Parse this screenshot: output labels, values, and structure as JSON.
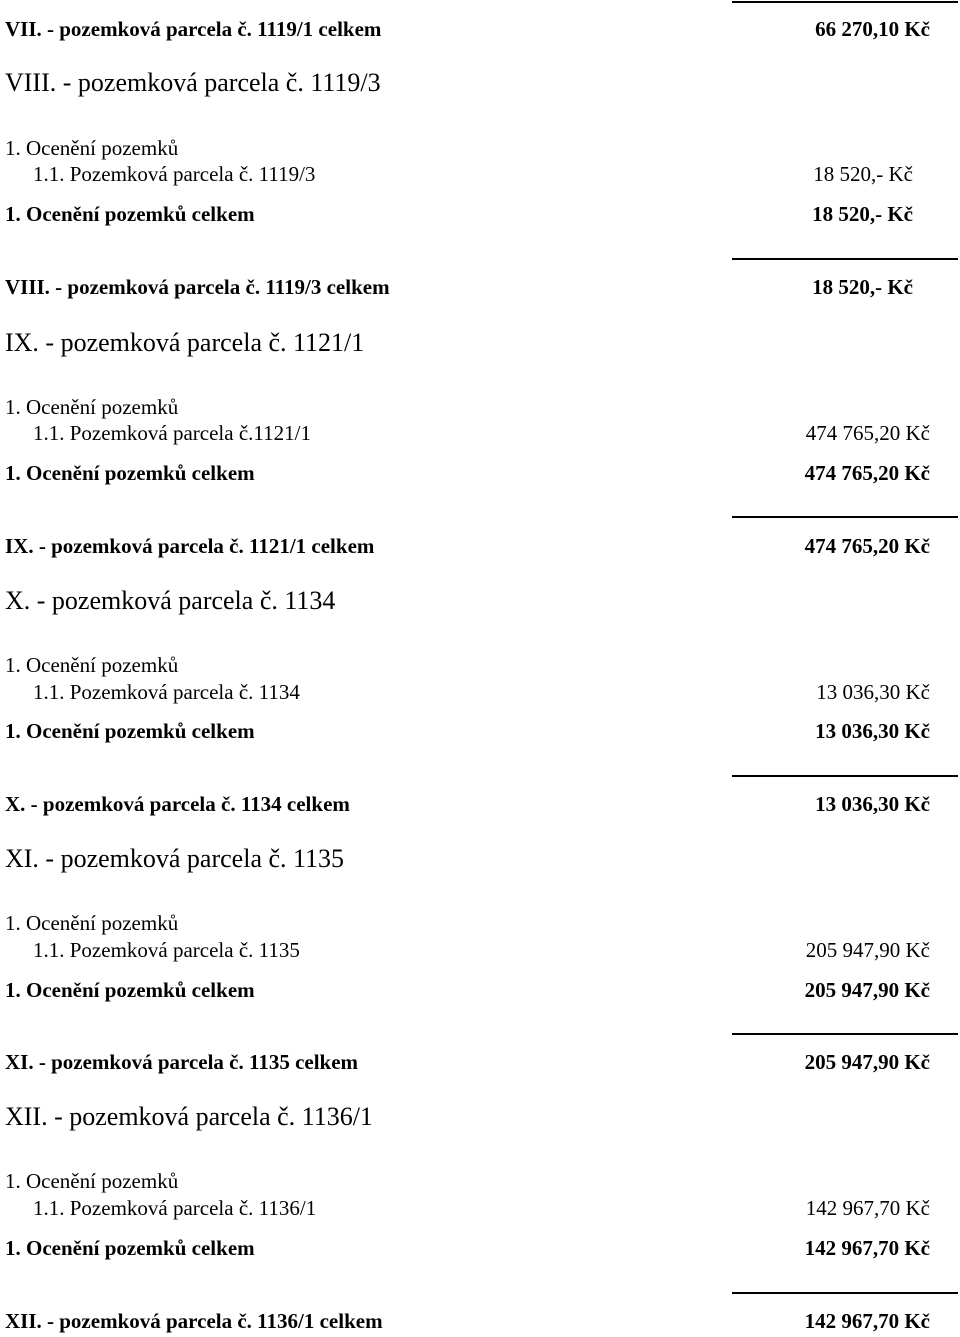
{
  "rows": [
    {
      "label": "VII. - pozemková parcela č. 1119/1 celkem",
      "amount": "66 270,10 Kč"
    },
    {
      "label": "VIII. - pozemková parcela č. 1119/3"
    },
    {
      "label": "1. Ocenění pozemků"
    },
    {
      "label": "1.1. Pozemková parcela č. 1119/3",
      "amount": "18 520,- Kč"
    },
    {
      "label": "1. Ocenění pozemků celkem",
      "amount": "18 520,- Kč"
    },
    {
      "label": "VIII. - pozemková parcela č. 1119/3 celkem",
      "amount": "18 520,- Kč"
    },
    {
      "label": "IX. - pozemková parcela č. 1121/1"
    },
    {
      "label": "1. Ocenění pozemků"
    },
    {
      "label": "1.1. Pozemková parcela č.1121/1",
      "amount": "474 765,20 Kč"
    },
    {
      "label": "1. Ocenění pozemků celkem",
      "amount": "474 765,20 Kč"
    },
    {
      "label": "IX. - pozemková parcela č. 1121/1 celkem",
      "amount": "474 765,20 Kč"
    },
    {
      "label": "X. - pozemková parcela č. 1134"
    },
    {
      "label": "1. Ocenění pozemků"
    },
    {
      "label": "1.1. Pozemková parcela č. 1134",
      "amount": "13 036,30 Kč"
    },
    {
      "label": "1. Ocenění pozemků celkem",
      "amount": "13 036,30 Kč"
    },
    {
      "label": "X. - pozemková parcela č. 1134 celkem",
      "amount": "13 036,30 Kč"
    },
    {
      "label": "XI. - pozemková parcela č. 1135"
    },
    {
      "label": "1. Ocenění pozemků"
    },
    {
      "label": "1.1. Pozemková parcela č. 1135",
      "amount": "205 947,90 Kč"
    },
    {
      "label": "1. Ocenění pozemků celkem",
      "amount": "205 947,90 Kč"
    },
    {
      "label": "XI. - pozemková parcela č. 1135 celkem",
      "amount": "205 947,90 Kč"
    },
    {
      "label": "XII. - pozemková parcela č. 1136/1"
    },
    {
      "label": "1. Ocenění pozemků"
    },
    {
      "label": "1.1. Pozemková parcela č. 1136/1",
      "amount": "142 967,70 Kč"
    },
    {
      "label": "1. Ocenění pozemků celkem",
      "amount": "142 967,70 Kč"
    },
    {
      "label": "XII. - pozemková parcela č. 1136/1 celkem",
      "amount": "142 967,70 Kč"
    }
  ]
}
